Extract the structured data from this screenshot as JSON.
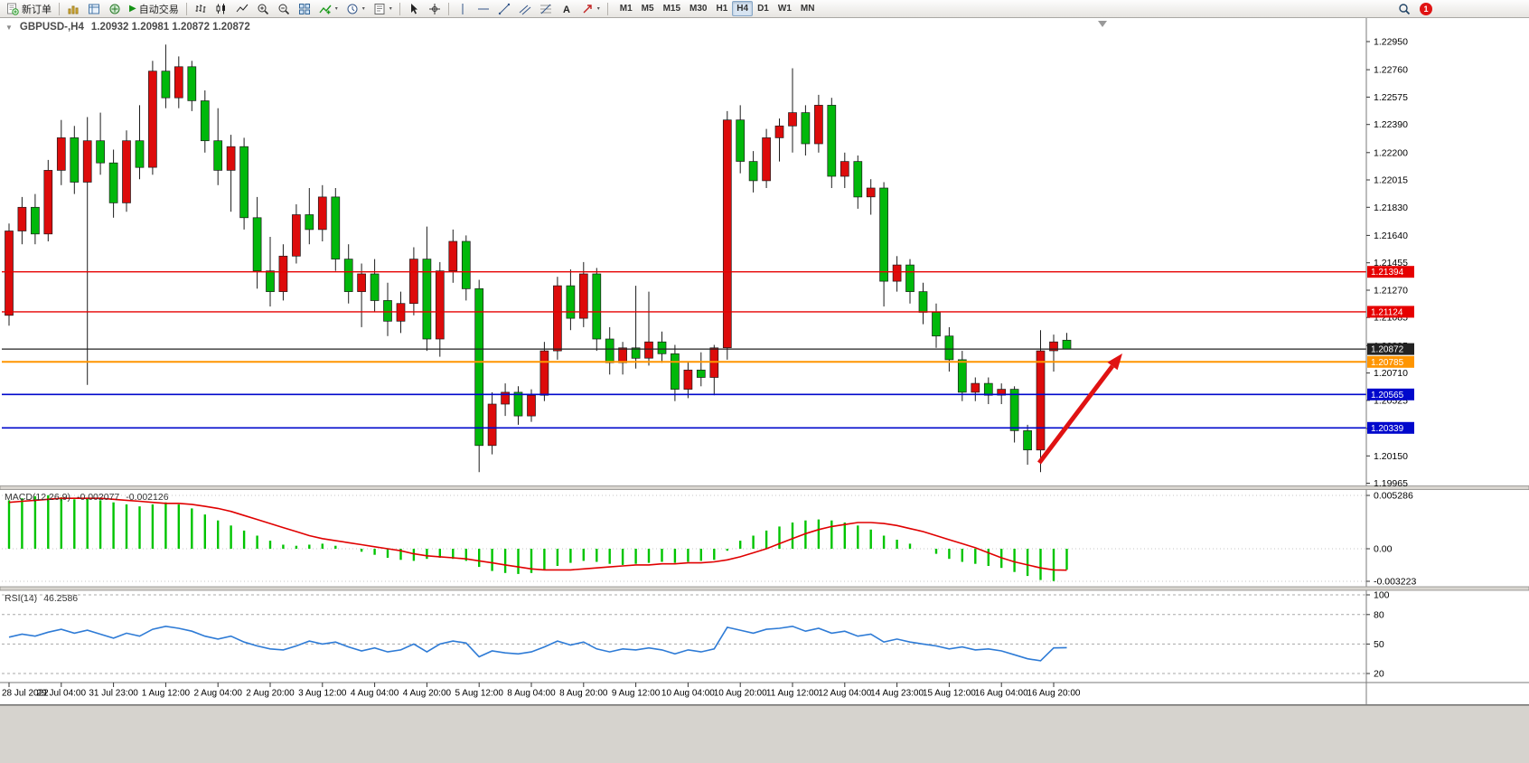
{
  "toolbar": {
    "new_order_label": "新订单",
    "autotrading_label": "自动交易",
    "timeframes": [
      "M1",
      "M5",
      "M15",
      "M30",
      "H1",
      "H4",
      "D1",
      "W1",
      "MN"
    ],
    "active_timeframe": "H4",
    "notification_count": "1"
  },
  "chart": {
    "symbol_label": "GBPUSD-,H4",
    "ohlc_label": "1.20932 1.20981 1.20872 1.20872",
    "colors": {
      "bull": "#dd0b0b",
      "bear": "#00b80b",
      "wick": "#1c1c1c",
      "background": "#ffffff"
    },
    "price_axis": [
      "1.22950",
      "1.22760",
      "1.22575",
      "1.22390",
      "1.22200",
      "1.22015",
      "1.21830",
      "1.21640",
      "1.21455",
      "1.21270",
      "1.21085",
      "1.20895",
      "1.20710",
      "1.20525",
      "1.20335",
      "1.20150",
      "1.19965"
    ],
    "date_axis": [
      "28 Jul 2022",
      "29 Jul 04:00",
      "31 Jul 23:00",
      "1 Aug 12:00",
      "2 Aug 04:00",
      "2 Aug 20:00",
      "3 Aug 12:00",
      "4 Aug 04:00",
      "4 Aug 20:00",
      "5 Aug 12:00",
      "8 Aug 04:00",
      "8 Aug 20:00",
      "9 Aug 12:00",
      "10 Aug 04:00",
      "10 Aug 20:00",
      "11 Aug 12:00",
      "12 Aug 04:00",
      "14 Aug 23:00",
      "15 Aug 12:00",
      "16 Aug 04:00",
      "16 Aug 20:00"
    ],
    "price_lines": [
      {
        "label": "1.21394",
        "price": 1.21394,
        "color": "#e60000",
        "width": 1.4
      },
      {
        "label": "1.21124",
        "price": 1.21124,
        "color": "#e60000",
        "width": 1.4
      },
      {
        "label": "1.20872",
        "price": 1.20872,
        "color": "#222222",
        "width": 1.2
      },
      {
        "label": "1.20785",
        "price": 1.20785,
        "color": "#ff9500",
        "width": 2
      },
      {
        "label": "1.20565",
        "price": 1.20565,
        "color": "#0008cc",
        "width": 1.6
      },
      {
        "label": "1.20339",
        "price": 1.20339,
        "color": "#0008cc",
        "width": 1.6
      }
    ]
  },
  "macd": {
    "label": "MACD(12,26,9)",
    "value_main": "-0.002077",
    "value_signal": "-0.002126",
    "axis": [
      "0.005286",
      "0.00",
      "-0.003223"
    ]
  },
  "rsi": {
    "label": "RSI(14)",
    "value": "46.2586",
    "axis": [
      "100",
      "80",
      "50",
      "20"
    ]
  },
  "annotation": {
    "arrow_color": "#e01212"
  },
  "chart_data": [
    {
      "type": "candlestick",
      "symbol": "GBPUSD-",
      "timeframe": "H4",
      "current_ohlc": {
        "open": 1.20932,
        "high": 1.20981,
        "low": 1.20872,
        "close": 1.20872
      },
      "ylim": [
        1.1995,
        1.2306
      ],
      "ohlc": [
        [
          1.211,
          1.2172,
          1.2103,
          1.2167
        ],
        [
          1.2167,
          1.219,
          1.2158,
          1.2183
        ],
        [
          1.2183,
          1.2192,
          1.2158,
          1.2165
        ],
        [
          1.2165,
          1.2215,
          1.216,
          1.2208
        ],
        [
          1.2208,
          1.2242,
          1.2198,
          1.223
        ],
        [
          1.223,
          1.2238,
          1.2192,
          1.22
        ],
        [
          1.22,
          1.2244,
          1.2063,
          1.2228
        ],
        [
          1.2228,
          1.2247,
          1.2205,
          1.2213
        ],
        [
          1.2213,
          1.2222,
          1.2176,
          1.2186
        ],
        [
          1.2186,
          1.2235,
          1.218,
          1.2228
        ],
        [
          1.2228,
          1.2252,
          1.2202,
          1.221
        ],
        [
          1.221,
          1.2282,
          1.2205,
          1.2275
        ],
        [
          1.2275,
          1.2293,
          1.225,
          1.2257
        ],
        [
          1.2257,
          1.2285,
          1.225,
          1.2278
        ],
        [
          1.2278,
          1.2282,
          1.2248,
          1.2255
        ],
        [
          1.2255,
          1.2262,
          1.222,
          1.2228
        ],
        [
          1.2228,
          1.225,
          1.2198,
          1.2208
        ],
        [
          1.2208,
          1.2232,
          1.218,
          1.2224
        ],
        [
          1.2224,
          1.223,
          1.2168,
          1.2176
        ],
        [
          1.2176,
          1.219,
          1.2128,
          1.214
        ],
        [
          1.214,
          1.2163,
          1.2116,
          1.2126
        ],
        [
          1.2126,
          1.2158,
          1.212,
          1.215
        ],
        [
          1.215,
          1.2185,
          1.2145,
          1.2178
        ],
        [
          1.2178,
          1.2196,
          1.2158,
          1.2168
        ],
        [
          1.2168,
          1.2198,
          1.216,
          1.219
        ],
        [
          1.219,
          1.2196,
          1.214,
          1.2148
        ],
        [
          1.2148,
          1.2158,
          1.2118,
          1.2126
        ],
        [
          1.2126,
          1.2145,
          1.2102,
          1.2138
        ],
        [
          1.2138,
          1.2148,
          1.2112,
          1.212
        ],
        [
          1.212,
          1.2132,
          1.2096,
          1.2106
        ],
        [
          1.2106,
          1.2126,
          1.2098,
          1.2118
        ],
        [
          1.2118,
          1.2156,
          1.211,
          1.2148
        ],
        [
          1.2148,
          1.217,
          1.2086,
          1.2094
        ],
        [
          1.2094,
          1.2146,
          1.2082,
          1.214
        ],
        [
          1.214,
          1.2168,
          1.2132,
          1.216
        ],
        [
          1.216,
          1.2164,
          1.212,
          1.2128
        ],
        [
          1.2128,
          1.2134,
          1.2004,
          1.2022
        ],
        [
          1.2022,
          1.2058,
          1.2016,
          1.205
        ],
        [
          1.205,
          1.2064,
          1.2042,
          1.2058
        ],
        [
          1.2058,
          1.2062,
          1.2036,
          1.2042
        ],
        [
          1.2042,
          1.206,
          1.2038,
          1.2056
        ],
        [
          1.2056,
          1.2092,
          1.2052,
          1.2086
        ],
        [
          1.2086,
          1.2136,
          1.208,
          1.213
        ],
        [
          1.213,
          1.2141,
          1.21,
          1.2108
        ],
        [
          1.2108,
          1.2146,
          1.2102,
          1.2138
        ],
        [
          1.2138,
          1.2142,
          1.2086,
          1.2094
        ],
        [
          1.2094,
          1.2102,
          1.207,
          1.2078
        ],
        [
          1.2078,
          1.2092,
          1.207,
          1.2088
        ],
        [
          1.2088,
          1.213,
          1.2074,
          1.2081
        ],
        [
          1.2081,
          1.2126,
          1.2076,
          1.2092
        ],
        [
          1.2092,
          1.2099,
          1.2078,
          1.2084
        ],
        [
          1.2084,
          1.209,
          1.2052,
          1.206
        ],
        [
          1.206,
          1.2079,
          1.2054,
          1.2073
        ],
        [
          1.2073,
          1.2085,
          1.2062,
          1.2068
        ],
        [
          1.2068,
          1.209,
          1.2056,
          1.2088
        ],
        [
          1.2088,
          1.2248,
          1.208,
          1.2242
        ],
        [
          1.2242,
          1.2252,
          1.2206,
          1.2214
        ],
        [
          1.2214,
          1.2221,
          1.2193,
          1.2201
        ],
        [
          1.2201,
          1.2236,
          1.2196,
          1.223
        ],
        [
          1.223,
          1.2243,
          1.2214,
          1.2238
        ],
        [
          1.2238,
          1.2277,
          1.222,
          1.2247
        ],
        [
          1.2247,
          1.2252,
          1.2218,
          1.2226
        ],
        [
          1.2226,
          1.2259,
          1.222,
          1.2252
        ],
        [
          1.2252,
          1.2257,
          1.2196,
          1.2204
        ],
        [
          1.2204,
          1.222,
          1.2196,
          1.2214
        ],
        [
          1.2214,
          1.2218,
          1.2182,
          1.219
        ],
        [
          1.219,
          1.2202,
          1.2178,
          1.2196
        ],
        [
          1.2196,
          1.22,
          1.2116,
          1.2133
        ],
        [
          1.2133,
          1.215,
          1.2126,
          1.2144
        ],
        [
          1.2144,
          1.2148,
          1.2118,
          1.2126
        ],
        [
          1.2126,
          1.2132,
          1.2104,
          1.2112
        ],
        [
          1.2112,
          1.2118,
          1.2088,
          1.2096
        ],
        [
          1.2096,
          1.2102,
          1.2072,
          1.208
        ],
        [
          1.208,
          1.2086,
          1.2052,
          1.2058
        ],
        [
          1.2058,
          1.2068,
          1.2052,
          1.2064
        ],
        [
          1.2064,
          1.2068,
          1.205,
          1.2056
        ],
        [
          1.2056,
          1.2064,
          1.205,
          1.206
        ],
        [
          1.206,
          1.2062,
          1.2024,
          1.2032
        ],
        [
          1.2032,
          1.2036,
          1.2009,
          1.2019
        ],
        [
          1.2019,
          1.21,
          1.2004,
          1.2086
        ],
        [
          1.2086,
          1.2097,
          1.2072,
          1.2092
        ],
        [
          1.20932,
          1.20981,
          1.20872,
          1.20872
        ]
      ]
    },
    {
      "type": "bar",
      "name": "MACD(12,26,9)",
      "ylim": [
        -0.003223,
        0.005286
      ],
      "colors": {
        "histogram": "#00c400",
        "signal": "#e00000"
      },
      "values": [
        0.0048,
        0.005,
        0.0052,
        0.0053,
        0.0051,
        0.0049,
        0.005,
        0.0048,
        0.0046,
        0.0044,
        0.0042,
        0.0044,
        0.0046,
        0.0044,
        0.004,
        0.0034,
        0.0028,
        0.0023,
        0.0018,
        0.0013,
        0.0008,
        0.0004,
        0.0003,
        0.0004,
        0.0005,
        0.0003,
        0.0,
        -0.0003,
        -0.0006,
        -0.0009,
        -0.0011,
        -0.0012,
        -0.001,
        -0.0009,
        -0.001,
        -0.0012,
        -0.0018,
        -0.0022,
        -0.0024,
        -0.0025,
        -0.0024,
        -0.0021,
        -0.0017,
        -0.0014,
        -0.0012,
        -0.0013,
        -0.0015,
        -0.0016,
        -0.0015,
        -0.0014,
        -0.0013,
        -0.0014,
        -0.0013,
        -0.0012,
        -0.0011,
        -0.0002,
        0.0008,
        0.0013,
        0.0018,
        0.0022,
        0.0026,
        0.0028,
        0.0029,
        0.0028,
        0.0026,
        0.0023,
        0.0019,
        0.0013,
        0.0009,
        0.0005,
        0.0,
        -0.0005,
        -0.001,
        -0.0013,
        -0.0015,
        -0.0017,
        -0.0019,
        -0.0023,
        -0.0027,
        -0.0031,
        -0.0032,
        -0.002077
      ],
      "signal": [
        0.0046,
        0.0047,
        0.0048,
        0.0049,
        0.005,
        0.005,
        0.005,
        0.005,
        0.0049,
        0.0048,
        0.0047,
        0.0046,
        0.0045,
        0.0045,
        0.0044,
        0.0042,
        0.004,
        0.0037,
        0.0033,
        0.0029,
        0.0025,
        0.0021,
        0.0017,
        0.0013,
        0.001,
        0.0008,
        0.0006,
        0.0004,
        0.0002,
        0.0,
        -0.0002,
        -0.0005,
        -0.0007,
        -0.0008,
        -0.0009,
        -0.001,
        -0.0012,
        -0.0014,
        -0.0016,
        -0.0018,
        -0.002,
        -0.0021,
        -0.0021,
        -0.0021,
        -0.002,
        -0.0019,
        -0.0018,
        -0.0017,
        -0.0016,
        -0.0016,
        -0.0015,
        -0.0015,
        -0.0014,
        -0.0014,
        -0.0013,
        -0.0011,
        -0.0008,
        -0.0004,
        0.0,
        0.0005,
        0.001,
        0.0015,
        0.0019,
        0.0022,
        0.0024,
        0.0026,
        0.0026,
        0.0025,
        0.0023,
        0.002,
        0.0017,
        0.0013,
        0.0009,
        0.0005,
        0.0001,
        -0.0004,
        -0.0009,
        -0.0013,
        -0.0016,
        -0.0019,
        -0.0021,
        -0.002126
      ]
    },
    {
      "type": "line",
      "name": "RSI(14)",
      "ylim": [
        0,
        100
      ],
      "levels": [
        80,
        50,
        20
      ],
      "color": "#2e7bd6",
      "values": [
        57,
        60,
        58,
        62,
        65,
        61,
        64,
        60,
        56,
        61,
        58,
        65,
        68,
        66,
        63,
        58,
        55,
        58,
        52,
        48,
        45,
        44,
        48,
        53,
        50,
        52,
        47,
        43,
        46,
        42,
        44,
        50,
        42,
        50,
        53,
        51,
        37,
        43,
        41,
        40,
        42,
        47,
        53,
        49,
        52,
        45,
        42,
        45,
        44,
        46,
        44,
        40,
        44,
        42,
        45,
        67,
        64,
        61,
        65,
        66,
        68,
        63,
        66,
        61,
        63,
        58,
        60,
        52,
        55,
        52,
        50,
        48,
        45,
        47,
        44,
        45,
        43,
        39,
        35,
        33,
        46,
        46.2586
      ]
    }
  ]
}
